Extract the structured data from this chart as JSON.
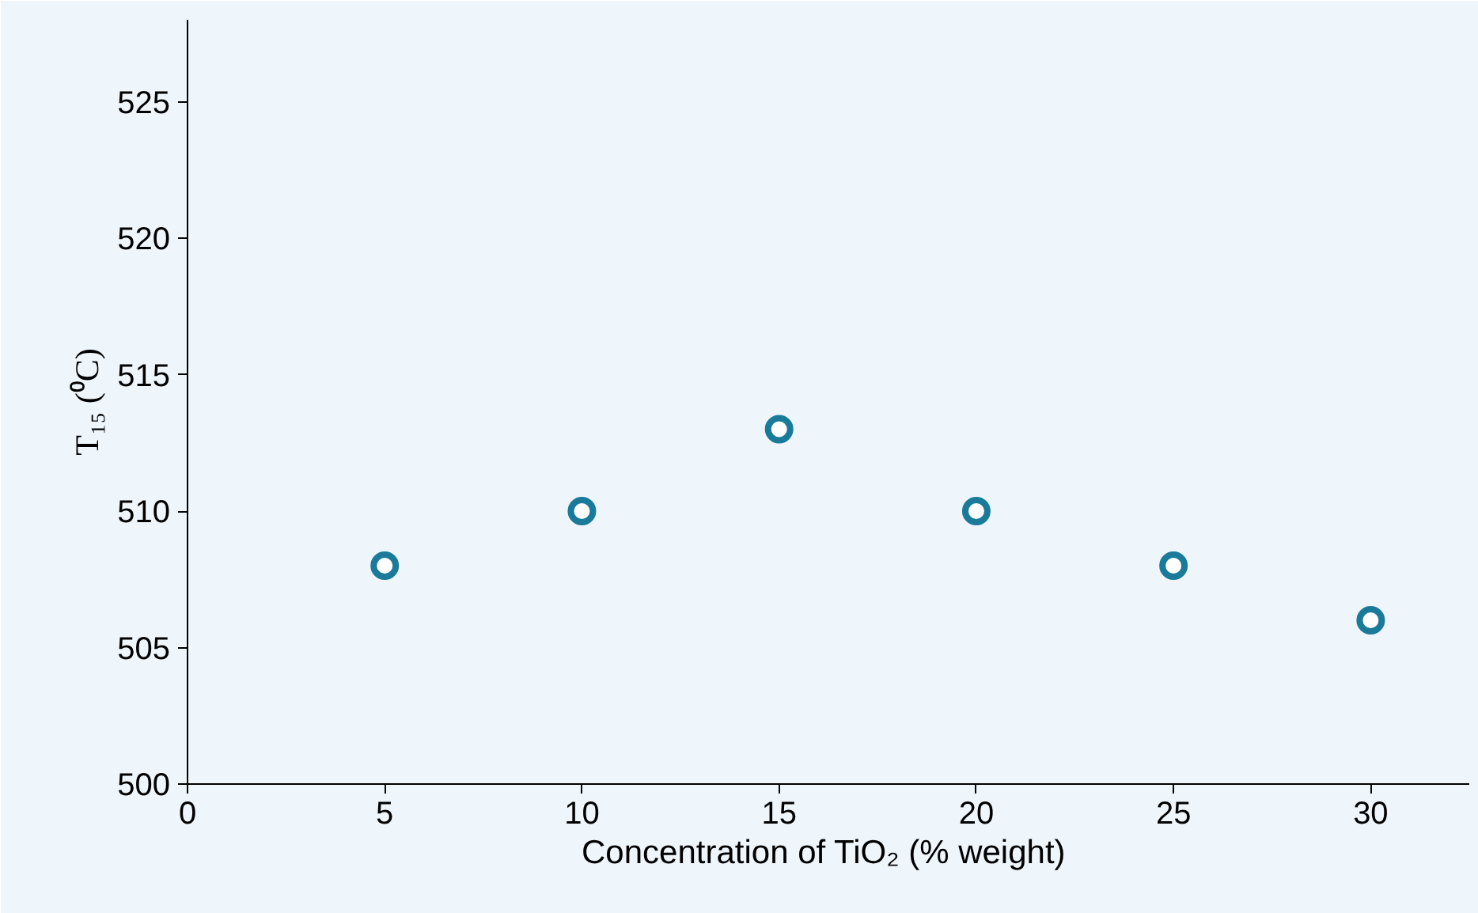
{
  "chart_data": {
    "type": "scatter",
    "xlabel": "Concentration of TiO₂  (% weight)",
    "ylabel": "T₁₅ (⁰C)",
    "x": [
      5,
      10,
      15,
      20,
      25,
      30
    ],
    "series": [
      {
        "color": "#1a7a9a",
        "values": [
          508,
          510,
          513,
          510,
          508,
          506
        ]
      }
    ],
    "marker": "circle",
    "xlim": [
      0,
      32.5
    ],
    "xticks": [
      0,
      5,
      10,
      15,
      20,
      25,
      30
    ],
    "ylim": [
      500,
      528
    ],
    "yticks": [
      500,
      505,
      510,
      515,
      520,
      525
    ],
    "grid": false
  }
}
